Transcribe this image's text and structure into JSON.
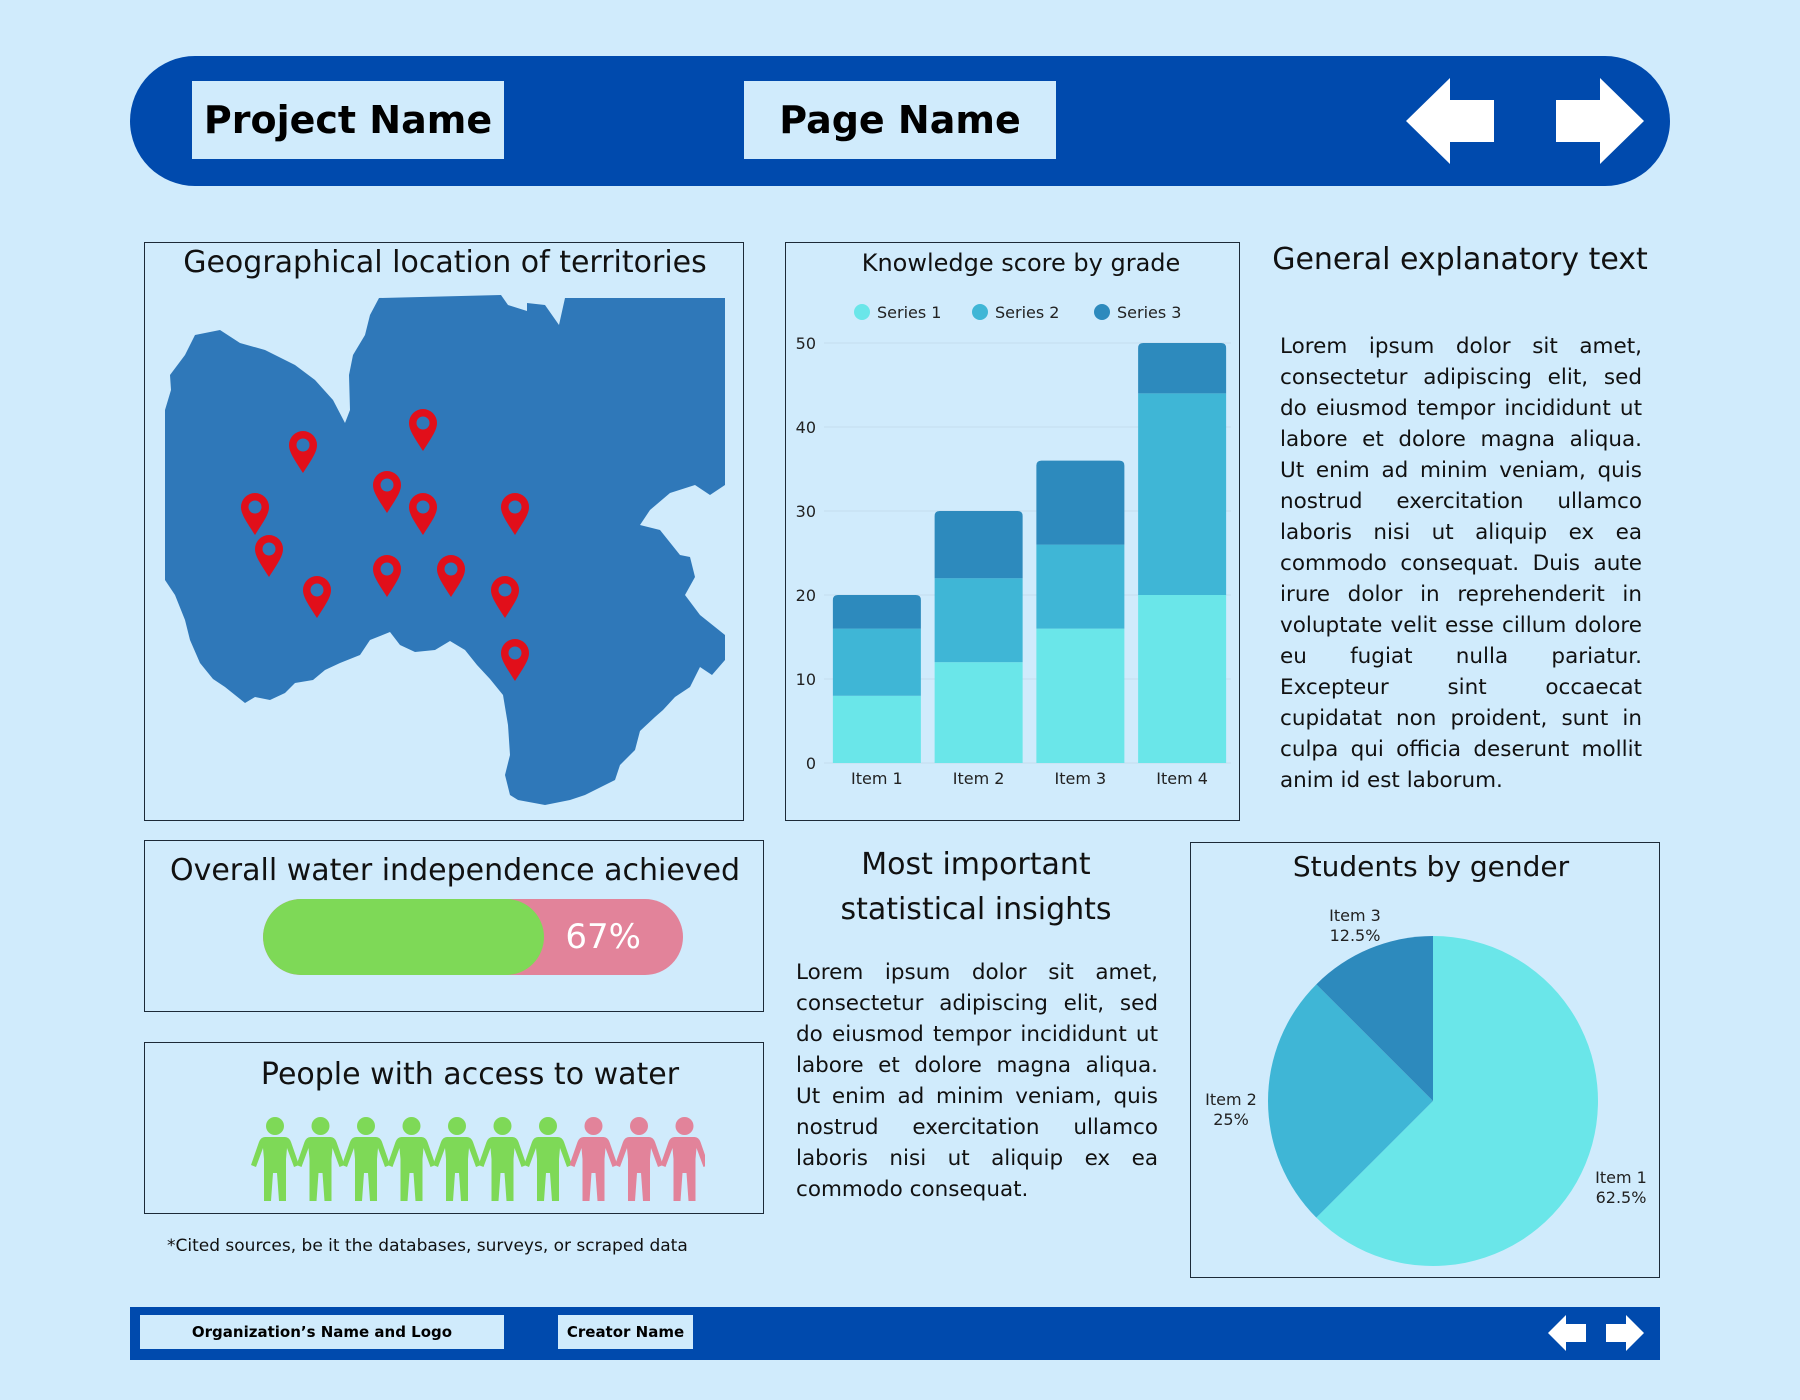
{
  "header": {
    "project_name": "Project Name",
    "page_name": "Page Name"
  },
  "map_panel": {
    "title": "Geographical location of territories",
    "land_color": "#2f78b9",
    "pin_color": "#e10f1a"
  },
  "chart_data": [
    {
      "type": "bar",
      "stacked": true,
      "title": "Knowledge score by grade",
      "categories": [
        "Item 1",
        "Item 2",
        "Item 3",
        "Item 4"
      ],
      "series": [
        {
          "name": "Series 1",
          "values": [
            8,
            12,
            16,
            20
          ],
          "color": "#6ae6e9"
        },
        {
          "name": "Series 2",
          "values": [
            8,
            10,
            10,
            24
          ],
          "color": "#3fb6d6"
        },
        {
          "name": "Series 3",
          "values": [
            4,
            8,
            10,
            6
          ],
          "color": "#2d8abd"
        }
      ],
      "yticks": [
        "0",
        "10",
        "20",
        "30",
        "40",
        "50"
      ],
      "ylim": [
        0,
        50
      ],
      "legend_position": "top",
      "grid": true
    },
    {
      "type": "pie",
      "title": "Students by gender",
      "slices": [
        {
          "label": "Item 1",
          "percent_label": "62.5%",
          "value": 62.5,
          "color": "#6ae6e9"
        },
        {
          "label": "Item 2",
          "percent_label": "25%",
          "value": 25,
          "color": "#3fb6d6"
        },
        {
          "label": "Item 3",
          "percent_label": "12.5%",
          "value": 12.5,
          "color": "#2d8abd"
        }
      ]
    }
  ],
  "explanatory": {
    "title": "General explanatory text",
    "text": "Lorem ipsum dolor sit amet, consectetur adipiscing elit, sed do eiusmod tempor incididunt ut labore et dolore magna aliqua. Ut enim ad minim veniam, quis nostrud exercitation ullamco laboris nisi ut aliquip ex ea commodo consequat. Duis aute irure dolor in reprehenderit in voluptate velit esse cillum dolore eu fugiat nulla pariatur. Excepteur sint occaecat cupidatat non proident, sunt in culpa qui officia deserunt mollit anim id est laborum."
  },
  "water_independence": {
    "title": "Overall water independence achieved",
    "percent_label": "67%",
    "progress": 0.67,
    "fill_color": "#7ed957",
    "track_color": "#e2839a"
  },
  "water_access": {
    "title": "People with access to water",
    "with_access": 7,
    "without_access": 3,
    "with_color": "#7ed957",
    "without_color": "#e2839a"
  },
  "insights": {
    "title_line1": "Most important",
    "title_line2": "statistical insights",
    "text": "Lorem ipsum dolor sit amet, consectetur adipiscing elit, sed do eiusmod tempor incididunt ut labore et dolore magna aliqua. Ut enim ad minim veniam, quis nostrud exercitation ullamco laboris nisi ut aliquip ex ea commodo consequat."
  },
  "sources_note": "*Cited sources, be it the databases, surveys, or scraped data",
  "footer": {
    "org_label": "Organization’s Name and Logo",
    "creator_label": "Creator Name"
  },
  "colors": {
    "background": "#d0ebfc",
    "brand_blue": "#004aad"
  }
}
